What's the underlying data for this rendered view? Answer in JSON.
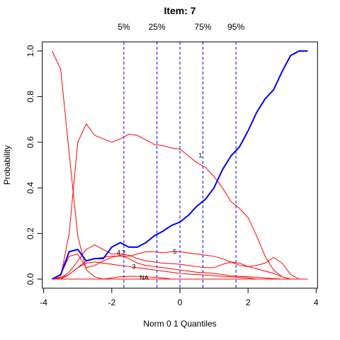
{
  "chart_data": {
    "type": "line",
    "title": "Item:  7",
    "xlabel": "Norm 0 1 Quantiles",
    "ylabel": "Probability",
    "xlim": [
      -4.04,
      4.04
    ],
    "ylim": [
      -0.04,
      1.04
    ],
    "xticks": [
      -4,
      -2,
      0,
      2,
      4
    ],
    "yticks": [
      {
        "value": 0,
        "label": "0.0"
      },
      {
        "value": 0.2,
        "label": "0.2"
      },
      {
        "value": 0.4,
        "label": "0.4"
      },
      {
        "value": 0.6,
        "label": "0.6"
      },
      {
        "value": 0.8,
        "label": "0.8"
      },
      {
        "value": 1,
        "label": "1.0"
      }
    ],
    "quantile_lines": [
      -1.645,
      -0.674,
      0,
      0.674,
      1.645
    ],
    "quantile_line_color": "#0000ff",
    "top_ticks": [
      {
        "value": -1.645,
        "label": "5%"
      },
      {
        "value": -0.674,
        "label": "25%"
      },
      {
        "value": 0.674,
        "label": "75%"
      },
      {
        "value": 1.645,
        "label": "95%"
      }
    ],
    "x": [
      -3.75,
      -3.5,
      -3.25,
      -3.0,
      -2.75,
      -2.5,
      -2.25,
      -2.0,
      -1.75,
      -1.5,
      -1.25,
      -1.0,
      -0.75,
      -0.5,
      -0.25,
      0,
      0.25,
      0.5,
      0.75,
      1.0,
      1.25,
      1.5,
      1.75,
      2.0,
      2.25,
      2.5,
      2.75,
      3.0,
      3.25,
      3.5,
      3.75
    ],
    "series": [
      {
        "color": "#ff0000",
        "width": 1,
        "values": [
          1.0,
          0.92,
          0.55,
          0.19,
          0.04,
          0.01,
          0,
          0,
          0,
          0,
          0,
          0,
          0,
          0,
          0,
          0,
          0,
          0,
          0,
          0,
          0,
          0,
          0,
          0,
          0,
          0,
          0,
          0,
          0,
          0,
          0
        ]
      },
      {
        "color": "#ff0000",
        "width": 1,
        "values": [
          0,
          0.01,
          0.2,
          0.6,
          0.68,
          0.63,
          0.615,
          0.6,
          0.615,
          0.635,
          0.63,
          0.61,
          0.59,
          0.585,
          0.575,
          0.57,
          0.54,
          0.51,
          0.49,
          0.45,
          0.4,
          0.34,
          0.31,
          0.27,
          0.19,
          0.1,
          0.04,
          0.01,
          0,
          0,
          0
        ]
      },
      {
        "color": "#ff0000",
        "width": 1,
        "values": [
          0,
          0.005,
          0.03,
          0.08,
          0.13,
          0.15,
          0.13,
          0.11,
          0.11,
          0.105,
          0.09,
          0.08,
          0.075,
          0.07,
          0.068,
          0.065,
          0.06,
          0.055,
          0.05,
          0.05,
          0.065,
          0.075,
          0.07,
          0.055,
          0.045,
          0.035,
          0.025,
          0.01,
          0,
          0,
          0
        ]
      },
      {
        "color": "#ff0000",
        "width": 1,
        "values": [
          0,
          0,
          0.02,
          0.05,
          0.07,
          0.075,
          0.07,
          0.065,
          0.06,
          0.055,
          0.05,
          0.045,
          0.04,
          0.035,
          0.03,
          0.025,
          0.022,
          0.02,
          0.018,
          0.015,
          0.012,
          0.01,
          0.008,
          0.005,
          0,
          0,
          0,
          0,
          0,
          0,
          0
        ]
      },
      {
        "color": "#ff0000",
        "width": 1,
        "values": [
          0,
          0.02,
          0.1,
          0.11,
          0.05,
          0.06,
          0.08,
          0.095,
          0.105,
          0.09,
          0.07,
          0.06,
          0.055,
          0.05,
          0.045,
          0.04,
          0.035,
          0.03,
          0.028,
          0.025,
          0.02,
          0.015,
          0.012,
          0.01,
          0.008,
          0.005,
          0.002,
          0,
          0,
          0,
          0
        ]
      },
      {
        "color": "#ff0000",
        "width": 1,
        "values": [
          0,
          0.005,
          0.02,
          0.05,
          0.08,
          0.09,
          0.095,
          0.1,
          0.1,
          0.1,
          0.11,
          0.12,
          0.12,
          0.115,
          0.12,
          0.12,
          0.115,
          0.11,
          0.105,
          0.1,
          0.09,
          0.075,
          0.06,
          0.055,
          0.06,
          0.07,
          0.095,
          0.07,
          0.02,
          0,
          0
        ]
      },
      {
        "color": "#ff0000",
        "width": 1,
        "values": [
          0,
          0,
          0,
          0,
          0,
          0,
          0,
          0.005,
          0.01,
          0.012,
          0.012,
          0.01,
          0.008,
          0.005,
          0,
          0,
          0,
          0,
          0,
          0,
          0,
          0,
          0,
          0,
          0,
          0,
          0,
          0,
          0,
          0,
          0
        ]
      },
      {
        "color": "#0000ff",
        "width": 2,
        "values": [
          0,
          0.02,
          0.12,
          0.13,
          0.08,
          0.09,
          0.09,
          0.14,
          0.16,
          0.14,
          0.14,
          0.16,
          0.19,
          0.21,
          0.235,
          0.25,
          0.28,
          0.32,
          0.35,
          0.4,
          0.48,
          0.54,
          0.58,
          0.65,
          0.73,
          0.79,
          0.83,
          0.91,
          0.98,
          1.0,
          1.0
        ]
      }
    ],
    "annotations": [
      {
        "text": "1",
        "x": 0.6,
        "y": 0.54
      },
      {
        "text": "4",
        "x": -1.8,
        "y": 0.115
      },
      {
        "text": "2",
        "x": -1.65,
        "y": 0.115
      },
      {
        "text": "5",
        "x": -0.15,
        "y": 0.118
      },
      {
        "text": "3",
        "x": -1.35,
        "y": 0.053
      },
      {
        "text": "NA",
        "x": -1.05,
        "y": 0.005
      }
    ]
  }
}
